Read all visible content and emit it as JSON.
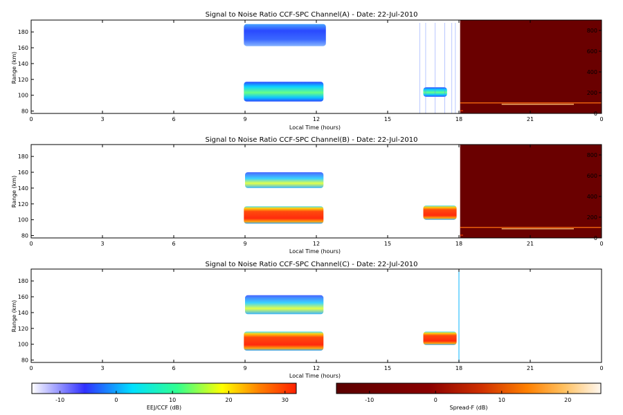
{
  "chart_data": [
    {
      "type": "heatmap",
      "title": "Signal to Noise Ratio CCF-SPC Channel(A) - Date: 22-Jul-2010",
      "xlabel": "Local Time (hours)",
      "ylabel": "Range (km)",
      "xlim": [
        0,
        24
      ],
      "ylim": [
        77,
        195
      ],
      "x_ticks": [
        "0",
        "3",
        "6",
        "9",
        "12",
        "15",
        "18",
        "21",
        "0"
      ],
      "y_ticks": [
        "80",
        "100",
        "120",
        "140",
        "160",
        "180"
      ],
      "right_ylim": [
        0,
        900
      ],
      "right_ticks": [
        "0",
        "200",
        "400",
        "600",
        "800"
      ],
      "regions": [
        {
          "kind": "eej",
          "t0": 8.95,
          "t1": 12.4,
          "r0": 162,
          "r1": 190,
          "snr": -5
        },
        {
          "kind": "eej",
          "t0": 8.95,
          "t1": 12.3,
          "r0": 92,
          "r1": 117,
          "snr": 2
        },
        {
          "kind": "eej",
          "t0": 16.5,
          "t1": 17.5,
          "r0": 98,
          "r1": 110,
          "snr": 3
        },
        {
          "kind": "spreadf",
          "t0": 18.05,
          "t1": 24,
          "r0": 77,
          "r1": 195,
          "snr": -10
        }
      ]
    },
    {
      "type": "heatmap",
      "title": "Signal to Noise Ratio CCF-SPC Channel(B) - Date: 22-Jul-2010",
      "xlabel": "Local Time (hours)",
      "ylabel": "Range (km)",
      "xlim": [
        0,
        24
      ],
      "ylim": [
        77,
        195
      ],
      "x_ticks": [
        "0",
        "3",
        "6",
        "9",
        "12",
        "15",
        "18",
        "21",
        "0"
      ],
      "y_ticks": [
        "80",
        "100",
        "120",
        "140",
        "160",
        "180"
      ],
      "right_ylim": [
        0,
        900
      ],
      "right_ticks": [
        "0",
        "200",
        "400",
        "600",
        "800"
      ],
      "regions": [
        {
          "kind": "eej",
          "t0": 9.0,
          "t1": 12.3,
          "r0": 140,
          "r1": 160,
          "snr": 5
        },
        {
          "kind": "eej",
          "t0": 8.95,
          "t1": 12.3,
          "r0": 95,
          "r1": 117,
          "snr": 30
        },
        {
          "kind": "eej",
          "t0": 16.5,
          "t1": 17.9,
          "r0": 100,
          "r1": 118,
          "snr": 30
        },
        {
          "kind": "spreadf",
          "t0": 18.05,
          "t1": 24,
          "r0": 77,
          "r1": 195,
          "snr": -10
        }
      ]
    },
    {
      "type": "heatmap",
      "title": "Signal to Noise Ratio CCF-SPC Channel(C) - Date: 22-Jul-2010",
      "xlabel": "Local Time (hours)",
      "ylabel": "Range (km)",
      "xlim": [
        0,
        24
      ],
      "ylim": [
        77,
        195
      ],
      "x_ticks": [
        "0",
        "3",
        "6",
        "9",
        "12",
        "15",
        "18",
        "21",
        "0"
      ],
      "y_ticks": [
        "80",
        "100",
        "120",
        "140",
        "160",
        "180"
      ],
      "regions": [
        {
          "kind": "eej",
          "t0": 9.0,
          "t1": 12.3,
          "r0": 138,
          "r1": 162,
          "snr": 0
        },
        {
          "kind": "eej",
          "t0": 8.95,
          "t1": 12.3,
          "r0": 92,
          "r1": 116,
          "snr": 30
        },
        {
          "kind": "eej",
          "t0": 16.5,
          "t1": 17.9,
          "r0": 99,
          "r1": 116,
          "snr": 30
        }
      ]
    }
  ],
  "colorbars": [
    {
      "label": "EEJ/CCF (dB)",
      "ticks": [
        "-10",
        "0",
        "10",
        "20",
        "30"
      ],
      "range": [
        -15,
        32
      ],
      "colors": [
        "#ffffff",
        "#3030ff",
        "#00e0ff",
        "#30ff90",
        "#ffff00",
        "#ff8000",
        "#ff2000"
      ]
    },
    {
      "label": "Spread-F (dB)",
      "ticks": [
        "-10",
        "0",
        "10",
        "20"
      ],
      "range": [
        -15,
        25
      ],
      "colors": [
        "#5a0000",
        "#8a0000",
        "#d03000",
        "#ff8000",
        "#ffc060",
        "#fff8f0"
      ]
    }
  ]
}
